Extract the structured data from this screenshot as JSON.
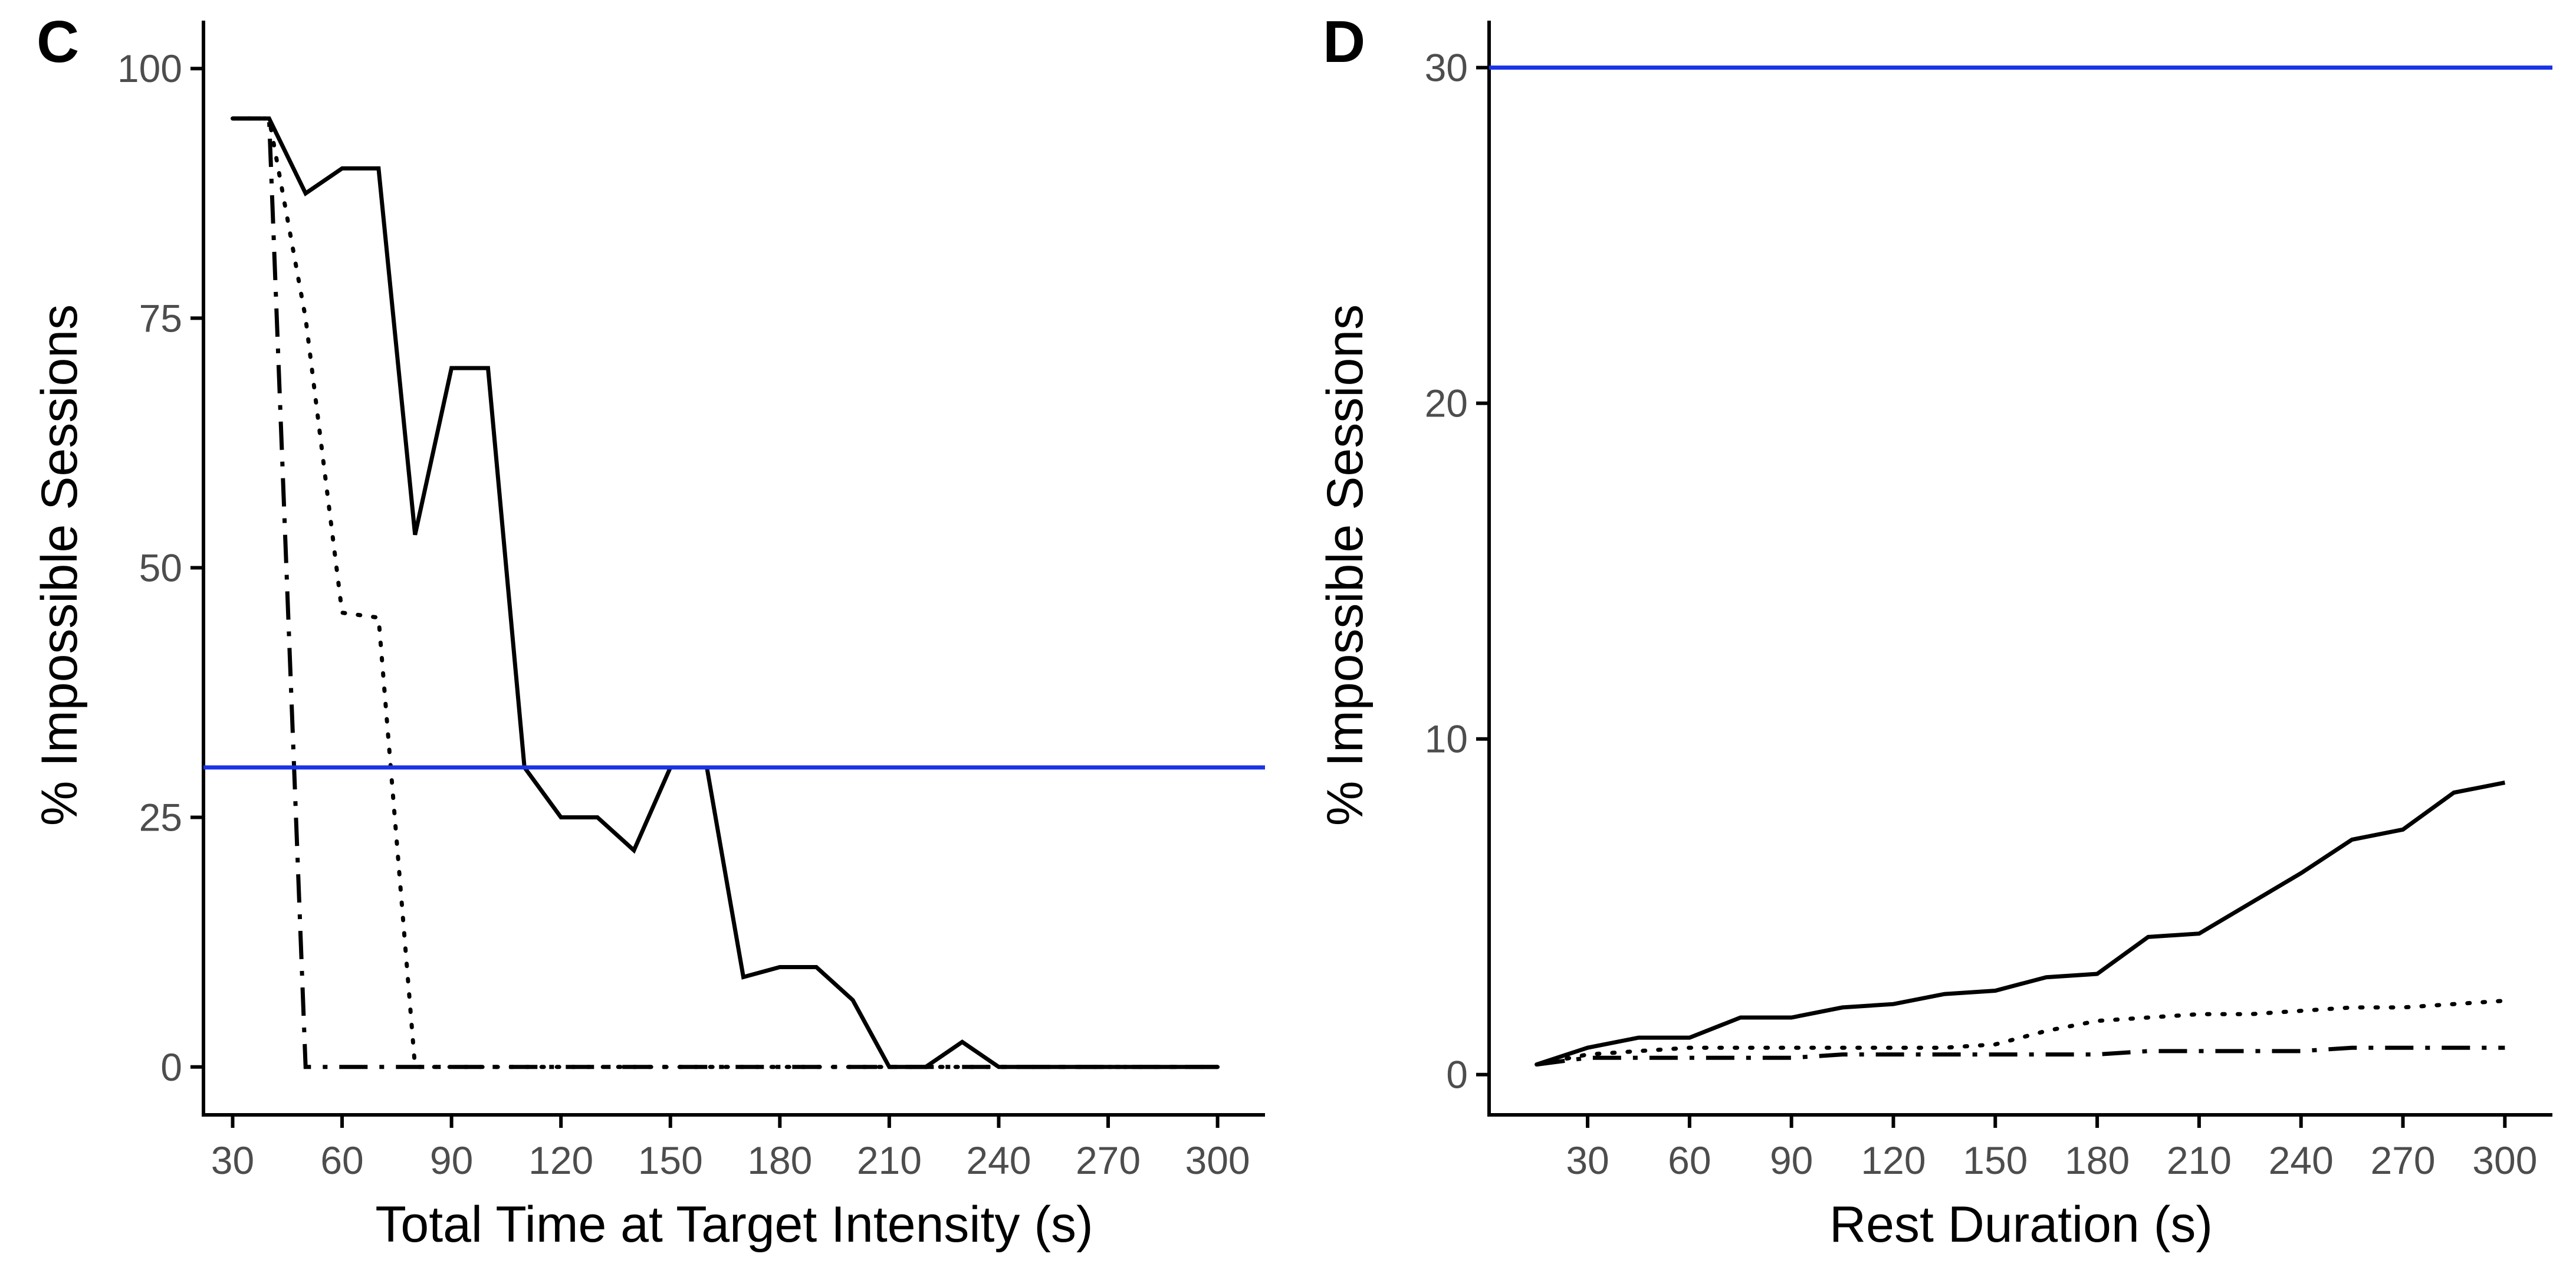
{
  "colors": {
    "threshold": "#1933e6",
    "series": "#000000",
    "tick_text": "#4d4d4d"
  },
  "chart_data": [
    {
      "panel": "C",
      "type": "line",
      "title": "",
      "xlabel": "Total Time at Target Intensity (s)",
      "ylabel": "% Impossible Sessions",
      "xlim": [
        22,
        313
      ],
      "ylim": [
        -4.8,
        104.8
      ],
      "xticks": [
        30,
        60,
        90,
        120,
        150,
        180,
        210,
        240,
        270,
        300
      ],
      "yticks": [
        0,
        25,
        50,
        75,
        100
      ],
      "grid": false,
      "hline": {
        "y": 30
      },
      "series": [
        {
          "name": "solid",
          "linestyle": "solid",
          "x": [
            30,
            40,
            50,
            60,
            70,
            80,
            90,
            100,
            110,
            120,
            130,
            140,
            150,
            160,
            170,
            180,
            190,
            200,
            210,
            220,
            230,
            240,
            250,
            260,
            270,
            280,
            290,
            300
          ],
          "y": [
            95,
            95,
            87.5,
            90,
            90,
            53.3,
            70,
            70,
            30,
            25,
            25,
            21.7,
            30,
            30,
            9,
            10,
            10,
            6.7,
            0,
            0,
            2.5,
            0,
            0,
            0,
            0,
            0,
            0,
            0
          ]
        },
        {
          "name": "dotted",
          "linestyle": "dotted",
          "x": [
            30,
            40,
            50,
            60,
            70,
            80,
            90,
            100,
            110,
            120,
            130,
            140,
            150,
            160,
            170,
            180,
            190,
            200,
            210,
            220,
            230,
            240,
            250,
            260,
            270,
            280,
            290,
            300
          ],
          "y": [
            95,
            95,
            75,
            45.5,
            45,
            0,
            0,
            0,
            0,
            0,
            0,
            0,
            0,
            0,
            0,
            0,
            0,
            0,
            0,
            0,
            0,
            0,
            0,
            0,
            0,
            0,
            0,
            0
          ]
        },
        {
          "name": "dashdot",
          "linestyle": "dashdot",
          "x": [
            30,
            40,
            50,
            60,
            70,
            80,
            90,
            100,
            110,
            120,
            130,
            140,
            150,
            160,
            170,
            180,
            190,
            200,
            210,
            220,
            230,
            240,
            250,
            260,
            270,
            280,
            290,
            300
          ],
          "y": [
            95,
            95,
            0,
            0,
            0,
            0,
            0,
            0,
            0,
            0,
            0,
            0,
            0,
            0,
            0,
            0,
            0,
            0,
            0,
            0,
            0,
            0,
            0,
            0,
            0,
            0,
            0,
            0
          ]
        }
      ]
    },
    {
      "panel": "D",
      "type": "line",
      "title": "",
      "xlabel": "Rest Duration (s)",
      "ylabel": "% Impossible Sessions",
      "xlim": [
        1,
        314
      ],
      "ylim": [
        -1.2,
        31.4
      ],
      "xticks": [
        30,
        60,
        90,
        120,
        150,
        180,
        210,
        240,
        270,
        300
      ],
      "yticks": [
        0,
        10,
        20,
        30
      ],
      "grid": false,
      "hline": {
        "y": 30
      },
      "series": [
        {
          "name": "solid",
          "linestyle": "solid",
          "x": [
            15,
            30,
            45,
            60,
            75,
            90,
            105,
            120,
            135,
            150,
            165,
            180,
            195,
            210,
            225,
            240,
            255,
            270,
            285,
            300
          ],
          "y": [
            0.3,
            0.8,
            1.1,
            1.1,
            1.7,
            1.7,
            2.0,
            2.1,
            2.4,
            2.5,
            2.9,
            3.0,
            4.1,
            4.2,
            5.1,
            6.0,
            7.0,
            7.3,
            8.4,
            8.7
          ]
        },
        {
          "name": "dotted",
          "linestyle": "dotted",
          "x": [
            15,
            30,
            45,
            60,
            75,
            90,
            105,
            120,
            135,
            150,
            165,
            180,
            195,
            210,
            225,
            240,
            255,
            270,
            285,
            300
          ],
          "y": [
            0.3,
            0.6,
            0.7,
            0.8,
            0.8,
            0.8,
            0.8,
            0.8,
            0.8,
            0.9,
            1.3,
            1.6,
            1.7,
            1.8,
            1.8,
            1.9,
            2.0,
            2.0,
            2.1,
            2.2
          ]
        },
        {
          "name": "dashdot",
          "linestyle": "dashdot",
          "x": [
            15,
            30,
            45,
            60,
            75,
            90,
            105,
            120,
            135,
            150,
            165,
            180,
            195,
            210,
            225,
            240,
            255,
            270,
            285,
            300
          ],
          "y": [
            0.3,
            0.5,
            0.5,
            0.5,
            0.5,
            0.5,
            0.6,
            0.6,
            0.6,
            0.6,
            0.6,
            0.6,
            0.7,
            0.7,
            0.7,
            0.7,
            0.8,
            0.8,
            0.8,
            0.8
          ]
        }
      ]
    }
  ]
}
